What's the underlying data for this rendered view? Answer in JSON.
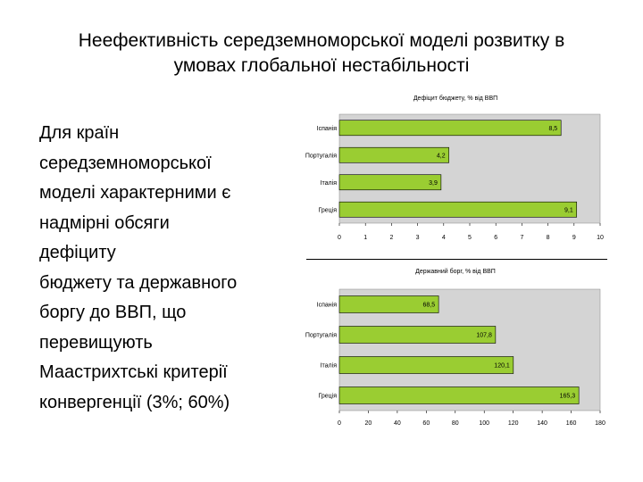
{
  "title": {
    "line1": "Неефективність середземноморської моделі розвитку в",
    "line2": "умовах глобальної нестабільності"
  },
  "body_lines": [
    "Для країн",
    "середземноморської",
    "моделі характерними є",
    "надмірні обсяги",
    "дефіциту",
    "бюджету та державного",
    "боргу до ВВП, що",
    "перевищують",
    "Маастрихтські критерії",
    "конвергенції (3%; 60%)"
  ],
  "colors": {
    "bar": "#9ACD32",
    "plot_bg": "#d4d4d4",
    "bar_stroke": "#000000"
  },
  "chart_data": [
    {
      "type": "bar",
      "orientation": "horizontal",
      "title": "Дефіцит бюджету, % від ВВП",
      "categories": [
        "Іспанія",
        "Португалія",
        "Італія",
        "Греція"
      ],
      "values": [
        8.5,
        4.2,
        3.9,
        9.1
      ],
      "value_labels": [
        "8,5",
        "4,2",
        "3,9",
        "9,1"
      ],
      "xlim": [
        0,
        10
      ],
      "xticks": [
        0,
        1,
        2,
        3,
        4,
        5,
        6,
        7,
        8,
        9,
        10
      ],
      "legend": "none"
    },
    {
      "type": "bar",
      "orientation": "horizontal",
      "title": "Державний борг, % від ВВП",
      "categories": [
        "Іспанія",
        "Португалія",
        "Італія",
        "Греція"
      ],
      "values": [
        68.5,
        107.8,
        120.1,
        165.3
      ],
      "value_labels": [
        "68,5",
        "107,8",
        "120,1",
        "165,3"
      ],
      "xlim": [
        0,
        180
      ],
      "xticks": [
        0,
        20,
        40,
        60,
        80,
        100,
        120,
        140,
        160,
        180
      ],
      "legend": "none"
    }
  ]
}
